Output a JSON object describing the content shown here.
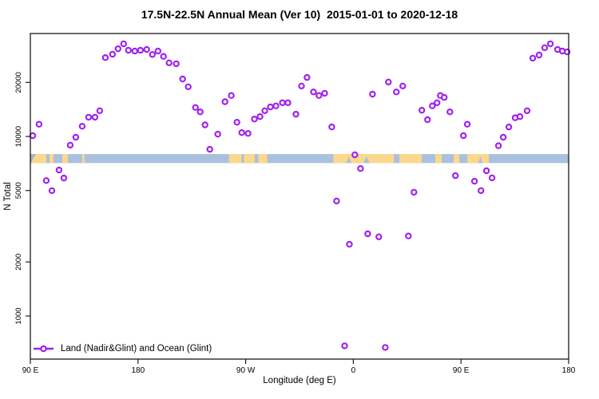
{
  "chart_data": {
    "type": "scatter",
    "title": "17.5N-22.5N Annual Mean (Ver 10)  2015-01-01 to 2020-12-18",
    "xlabel": "Longitude (deg E)",
    "ylabel": "N Total",
    "legend": "Land (Nadir&Glint) and Ocean (Glint)",
    "legend_position": "bottom-left",
    "grid": false,
    "x_axis": {
      "note": "wrapped longitude axis, degrees eastward from 90E, spans 450 deg",
      "range_deg": [
        0,
        450
      ],
      "ticks": [
        {
          "pos": 0,
          "label": "90 E"
        },
        {
          "pos": 90,
          "label": "180"
        },
        {
          "pos": 180,
          "label": "90 W"
        },
        {
          "pos": 270,
          "label": "0"
        },
        {
          "pos": 360,
          "label": "90 E"
        },
        {
          "pos": 450,
          "label": "180"
        }
      ]
    },
    "y_axis": {
      "scale": "log",
      "range": [
        575,
        37400
      ],
      "ticks": [
        {
          "value": 1000,
          "label": "1000"
        },
        {
          "value": 2000,
          "label": "2000"
        },
        {
          "value": 5000,
          "label": "5000"
        },
        {
          "value": 10000,
          "label": "10000"
        },
        {
          "value": 20000,
          "label": "20000"
        }
      ]
    },
    "colors": {
      "marker": "#A020F0",
      "ocean": "#A9C1DE",
      "land": "#FBD88C",
      "left_wedge": "#9FB3CE",
      "axis": "#1a1a1a"
    },
    "map_band": {
      "band_top_value": 7980,
      "band_bottom_value": 7110,
      "land_segments_deg": [
        [
          1.3,
          13.3
        ],
        [
          16,
          19.3
        ],
        [
          26.7,
          31.3
        ],
        [
          43.3,
          45.3
        ],
        [
          166,
          176.5
        ],
        [
          178.5,
          187.5
        ],
        [
          190.5,
          198
        ],
        [
          253.3,
          303.8
        ],
        [
          308.5,
          327.2
        ],
        [
          338.5,
          343.9
        ],
        [
          353.9,
          358.6
        ],
        [
          365.3,
          383.3
        ]
      ],
      "ocean_notches_deg": [
        [
          264,
          268.5
        ],
        [
          278.5,
          283.5
        ],
        [
          374.5,
          378
        ]
      ],
      "left_wedge_deg": [
        0,
        4.7
      ]
    },
    "series": [
      {
        "name": "Land (Nadir&Glint) and Ocean (Glint)",
        "points_deg_value": [
          [
            2.0,
            10100
          ],
          [
            7.3,
            11700
          ],
          [
            13.3,
            5680
          ],
          [
            18.0,
            4990
          ],
          [
            24.0,
            6500
          ],
          [
            28.0,
            5870
          ],
          [
            33.3,
            8940
          ],
          [
            38.0,
            9900
          ],
          [
            43.3,
            11400
          ],
          [
            48.7,
            12800
          ],
          [
            54.0,
            12800
          ],
          [
            58.0,
            13900
          ],
          [
            62.7,
            27500
          ],
          [
            68.7,
            28700
          ],
          [
            73.3,
            30800
          ],
          [
            78.0,
            32800
          ],
          [
            82.0,
            30200
          ],
          [
            87.3,
            29900
          ],
          [
            92.0,
            30200
          ],
          [
            97.3,
            30500
          ],
          [
            102.0,
            28600
          ],
          [
            106.7,
            29900
          ],
          [
            111.3,
            27900
          ],
          [
            116.0,
            25700
          ],
          [
            122.0,
            25400
          ],
          [
            127.3,
            20900
          ],
          [
            132.0,
            18900
          ],
          [
            138.0,
            14500
          ],
          [
            142.0,
            13700
          ],
          [
            146.0,
            11600
          ],
          [
            150.0,
            8480
          ],
          [
            156.7,
            10300
          ],
          [
            162.7,
            15600
          ],
          [
            168.0,
            16900
          ],
          [
            172.7,
            12000
          ],
          [
            176.7,
            10500
          ],
          [
            182.0,
            10400
          ],
          [
            187.3,
            12500
          ],
          [
            192.0,
            12900
          ],
          [
            196.0,
            13900
          ],
          [
            200.7,
            14600
          ],
          [
            205.3,
            14800
          ],
          [
            210.7,
            15400
          ],
          [
            215.3,
            15400
          ],
          [
            222.0,
            13300
          ],
          [
            226.7,
            19100
          ],
          [
            231.3,
            21300
          ],
          [
            236.7,
            17700
          ],
          [
            241.3,
            16900
          ],
          [
            246.0,
            17400
          ],
          [
            252.0,
            11300
          ],
          [
            256.0,
            4370
          ],
          [
            262.7,
            682
          ],
          [
            266.7,
            2510
          ],
          [
            271.3,
            7900
          ],
          [
            276.0,
            6630
          ],
          [
            282.0,
            2870
          ],
          [
            286.0,
            17200
          ],
          [
            291.3,
            2760
          ],
          [
            296.7,
            668
          ],
          [
            299.3,
            20100
          ],
          [
            306.0,
            17700
          ],
          [
            311.3,
            19100
          ],
          [
            316.0,
            2790
          ],
          [
            320.7,
            4890
          ],
          [
            327.3,
            14000
          ],
          [
            332.0,
            12400
          ],
          [
            336.0,
            14800
          ],
          [
            340.0,
            15400
          ],
          [
            342.7,
            16900
          ],
          [
            346.0,
            16500
          ],
          [
            350.7,
            13700
          ],
          [
            355.3,
            6050
          ],
          [
            362.0,
            10100
          ],
          [
            365.3,
            11700
          ],
          [
            371.3,
            5630
          ],
          [
            376.7,
            4990
          ],
          [
            381.3,
            6440
          ],
          [
            386.0,
            5880
          ],
          [
            391.3,
            8880
          ],
          [
            395.3,
            9900
          ],
          [
            400.0,
            11300
          ],
          [
            405.3,
            12700
          ],
          [
            409.3,
            12900
          ],
          [
            415.3,
            13900
          ],
          [
            420.0,
            27300
          ],
          [
            425.3,
            28400
          ],
          [
            430.0,
            31200
          ],
          [
            434.7,
            32800
          ],
          [
            440.7,
            30500
          ],
          [
            444.7,
            29900
          ],
          [
            448.7,
            29600
          ]
        ]
      }
    ]
  }
}
